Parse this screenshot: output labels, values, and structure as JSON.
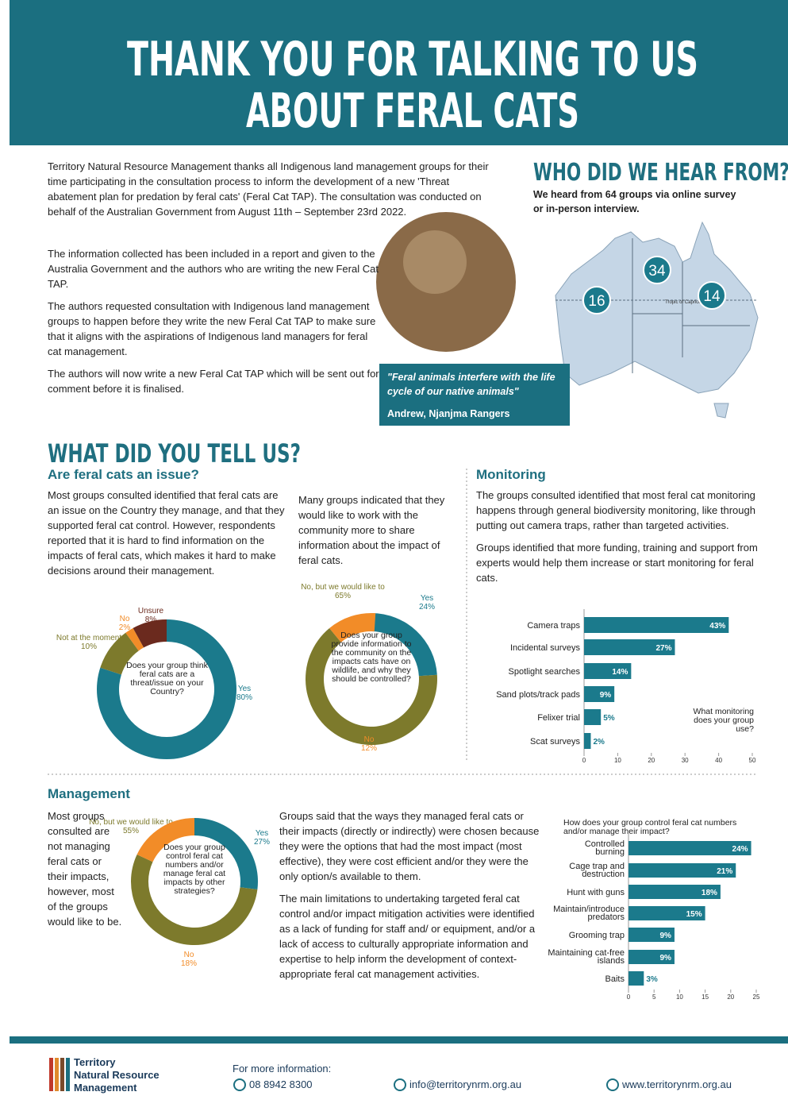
{
  "header": {
    "title_lines": [
      "THANK YOU FOR TALKING TO US",
      "ABOUT FERAL CATS"
    ]
  },
  "intro": {
    "paragraphs": [
      "Territory Natural Resource Management thanks all Indigenous land management groups for their time participating in the consultation process to inform the development of a new 'Threat abatement plan for predation by feral cats' (Feral Cat TAP). The consultation was conducted on behalf of the Australian Government from August 11th – September 23rd 2022.",
      "The information collected has been included in a report and given to the Australia Government and the authors who are writing the new Feral Cat TAP.",
      "The authors requested consultation with Indigenous land management groups to happen before they write the new Feral Cat TAP to make sure that it aligns with the aspirations of Indigenous land managers for feral cat management.",
      "The authors will now write a new Feral Cat TAP which will be sent out for comment before it is finalised."
    ]
  },
  "who": {
    "title": "WHO DID WE HEAR FROM?",
    "text": "We heard from 64 groups via online survey or in-person interview.",
    "map": {
      "counts": [
        16,
        34,
        14
      ],
      "tropic": "Tropic of Capricorn"
    },
    "quote": "\"Feral animals interfere with the life cycle of our native animals\"",
    "attribution": "Andrew, Njanjma Rangers"
  },
  "tell": {
    "title": "WHAT DID YOU TELL US?",
    "issue": {
      "heading": "Are feral cats an issue?",
      "paragraphs": [
        "Most groups consulted identified that feral cats are an issue on the Country they manage, and that they supported feral cat control. However, respondents reported that it is hard to find information on the impacts of feral cats, which makes it hard to make decisions around their management.",
        "Many groups indicated that they would like to work with the community more to share information about the impact of feral cats."
      ],
      "donut1": {
        "type": "donut",
        "question": "Does your group think feral cats are a threat/issue on your Country?",
        "categories": [
          "Yes",
          "Not at the moment",
          "No",
          "Unsure"
        ],
        "values": [
          80,
          10,
          2,
          8
        ],
        "value_labels": [
          "80%",
          "10%",
          "2%",
          "8%"
        ],
        "colors": [
          "#1b7a8c",
          "#7d7a2c",
          "#f28c28",
          "#6b2a1e"
        ]
      },
      "donut2": {
        "type": "donut",
        "question": "Does your group provide information to the community on the impacts cats have on wildlife, and why they should be controlled?",
        "categories": [
          "Yes",
          "No, but we would like to",
          "No"
        ],
        "values": [
          24,
          65,
          12
        ],
        "value_labels": [
          "24%",
          "65%",
          "12%"
        ],
        "colors": [
          "#1b7a8c",
          "#7d7a2c",
          "#f28c28"
        ]
      }
    }
  },
  "monitoring": {
    "heading": "Monitoring",
    "paragraphs": [
      "The groups consulted identified that most feral cat monitoring happens through general biodiversity monitoring, like through putting out camera traps, rather than targeted activities.",
      "Groups identified that more funding, training and support from experts would help them increase or start monitoring for feral cats."
    ],
    "chart": {
      "type": "bar",
      "annotation": "What monitoring does your group use?",
      "categories": [
        "Camera traps",
        "Incidental surveys",
        "Spotlight searches",
        "Sand plots/track pads",
        "Felixer trial",
        "Scat surveys"
      ],
      "values": [
        43,
        27,
        14,
        9,
        5,
        2
      ],
      "value_labels": [
        "43%",
        "27%",
        "14%",
        "9%",
        "5%",
        "2%"
      ],
      "color": "#1b7a8c",
      "xlim": [
        0,
        50
      ],
      "xticks": [
        0,
        10,
        20,
        30,
        40,
        50
      ]
    }
  },
  "management": {
    "heading": "Management",
    "left_text": "Most groups consulted are not managing feral cats or their impacts, however, most of the groups would like to be.",
    "paragraphs": [
      "Groups said that the ways they managed feral cats or their impacts (directly or indirectly) were chosen because they were the options that had the most impact (most effective), they were cost efficient and/or they were the only option/s available to them.",
      "The main limitations to undertaking targeted feral cat control and/or impact mitigation activities were identified as a lack of funding for staff and/ or equipment, and/or a lack of access to culturally appropriate information and expertise to help inform the development of context-appropriate feral cat management activities."
    ],
    "donut3": {
      "type": "donut",
      "question": "Does your group control feral cat numbers and/or manage feral cat impacts by other strategies?",
      "categories": [
        "Yes",
        "No, but we would like to",
        "No"
      ],
      "values": [
        27,
        55,
        18
      ],
      "value_labels": [
        "27%",
        "55%",
        "18%"
      ],
      "colors": [
        "#1b7a8c",
        "#7d7a2c",
        "#f28c28"
      ]
    },
    "chart": {
      "type": "bar",
      "title": "How does your group control feral cat numbers and/or manage their impact?",
      "categories": [
        "Controlled burning",
        "Cage trap and destruction",
        "Hunt with guns",
        "Maintain/introduce predators",
        "Grooming trap",
        "Maintaining cat-free islands",
        "Baits"
      ],
      "values": [
        24,
        21,
        18,
        15,
        9,
        9,
        3
      ],
      "value_labels": [
        "24%",
        "21%",
        "18%",
        "15%",
        "9%",
        "9%",
        "3%"
      ],
      "color": "#1b7a8c",
      "xlim": [
        0,
        25
      ],
      "xticks": [
        0,
        5,
        10,
        15,
        20,
        25
      ]
    }
  },
  "footer": {
    "logo_lines": [
      "Territory",
      "Natural Resource",
      "Management"
    ],
    "more": "For more information:",
    "phone": "08 8942 8300",
    "email": "info@territorynrm.org.au",
    "web": "www.territorynrm.org.au"
  }
}
